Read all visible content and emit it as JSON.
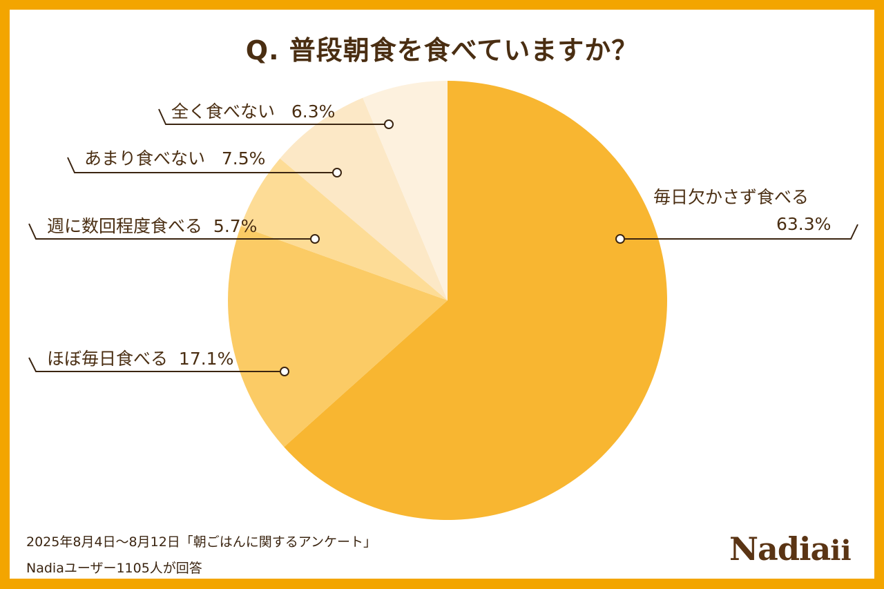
{
  "title": "Q. 普段朝食を食べていますか？",
  "chart_data": {
    "type": "pie",
    "start": "top, clockwise",
    "slices": [
      {
        "label": "毎日欠かさず食べる",
        "value": 63.3,
        "display": "63.3%",
        "color": "#F8B631"
      },
      {
        "label": "ほぼ毎日食べる",
        "value": 17.1,
        "display": "17.1%",
        "color": "#FBCB65"
      },
      {
        "label": "週に数回程度食べる",
        "value": 5.7,
        "display": "5.7%",
        "color": "#FDDC96"
      },
      {
        "label": "あまり食べない",
        "value": 7.5,
        "display": "7.5%",
        "color": "#FCE8C6"
      },
      {
        "label": "全く食べない",
        "value": 6.3,
        "display": "6.3%",
        "color": "#FDF1DE"
      }
    ]
  },
  "footer": {
    "line1": "2025年8月4日～8月12日「朝ごはんに関するアンケート」",
    "line2": "Nadiaユーザー1105人が回答"
  },
  "logo": "Nadia",
  "colors": {
    "border": "#F3A500",
    "text": "#4a2e12"
  }
}
